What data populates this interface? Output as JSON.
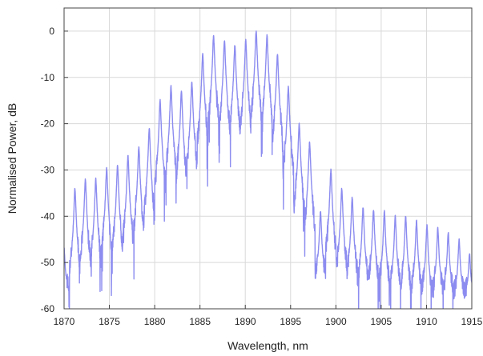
{
  "chart_data": {
    "type": "line",
    "title": "",
    "xlabel": "Wavelength, nm",
    "ylabel": "Normalised Power, dB",
    "xlim": [
      1870,
      1915
    ],
    "ylim": [
      -60,
      5
    ],
    "x_ticks": [
      1870,
      1875,
      1880,
      1885,
      1890,
      1895,
      1900,
      1905,
      1910,
      1915
    ],
    "y_ticks": [
      0,
      -10,
      -20,
      -30,
      -40,
      -50,
      -60
    ],
    "grid": true,
    "legend": "none",
    "line_color": "#8c8cf0",
    "peak_x": [
      1870.0,
      1871.2,
      1872.35,
      1873.5,
      1874.7,
      1875.9,
      1877.05,
      1878.25,
      1879.4,
      1880.6,
      1881.8,
      1882.95,
      1884.1,
      1885.3,
      1886.5,
      1887.7,
      1888.85,
      1890.05,
      1891.2,
      1892.4,
      1893.55,
      1894.75,
      1895.95,
      1897.1,
      1898.3,
      1899.45,
      1900.65,
      1901.8,
      1903.0,
      1904.15,
      1905.35,
      1906.55,
      1907.7,
      1908.9,
      1910.05,
      1911.25,
      1912.4,
      1913.6,
      1914.75
    ],
    "peak_y": [
      -47,
      -34,
      -32,
      -32,
      -29.5,
      -29,
      -27,
      -25,
      -21,
      -15,
      -12,
      -13,
      -11,
      -5,
      -1,
      -2,
      -3,
      -2,
      0,
      -1,
      -5,
      -12,
      -20,
      -24,
      -39,
      -30,
      -34,
      -36,
      -38,
      -38.5,
      -39,
      -40,
      -40,
      -41,
      -42,
      -42.5,
      -43.5,
      -45,
      -48
    ],
    "valley_y": [
      -55,
      -56,
      -56,
      -56,
      -56,
      -55,
      -54,
      -54,
      -54,
      -53,
      -53,
      -53,
      -52,
      -52,
      -51,
      -51,
      -51,
      -50,
      -50,
      -50,
      -51,
      -51,
      -52,
      -53,
      -53,
      -54,
      -54,
      -54,
      -55,
      -55,
      -55,
      -56,
      -56,
      -56,
      -56,
      -56,
      -56,
      -56,
      -56
    ]
  }
}
